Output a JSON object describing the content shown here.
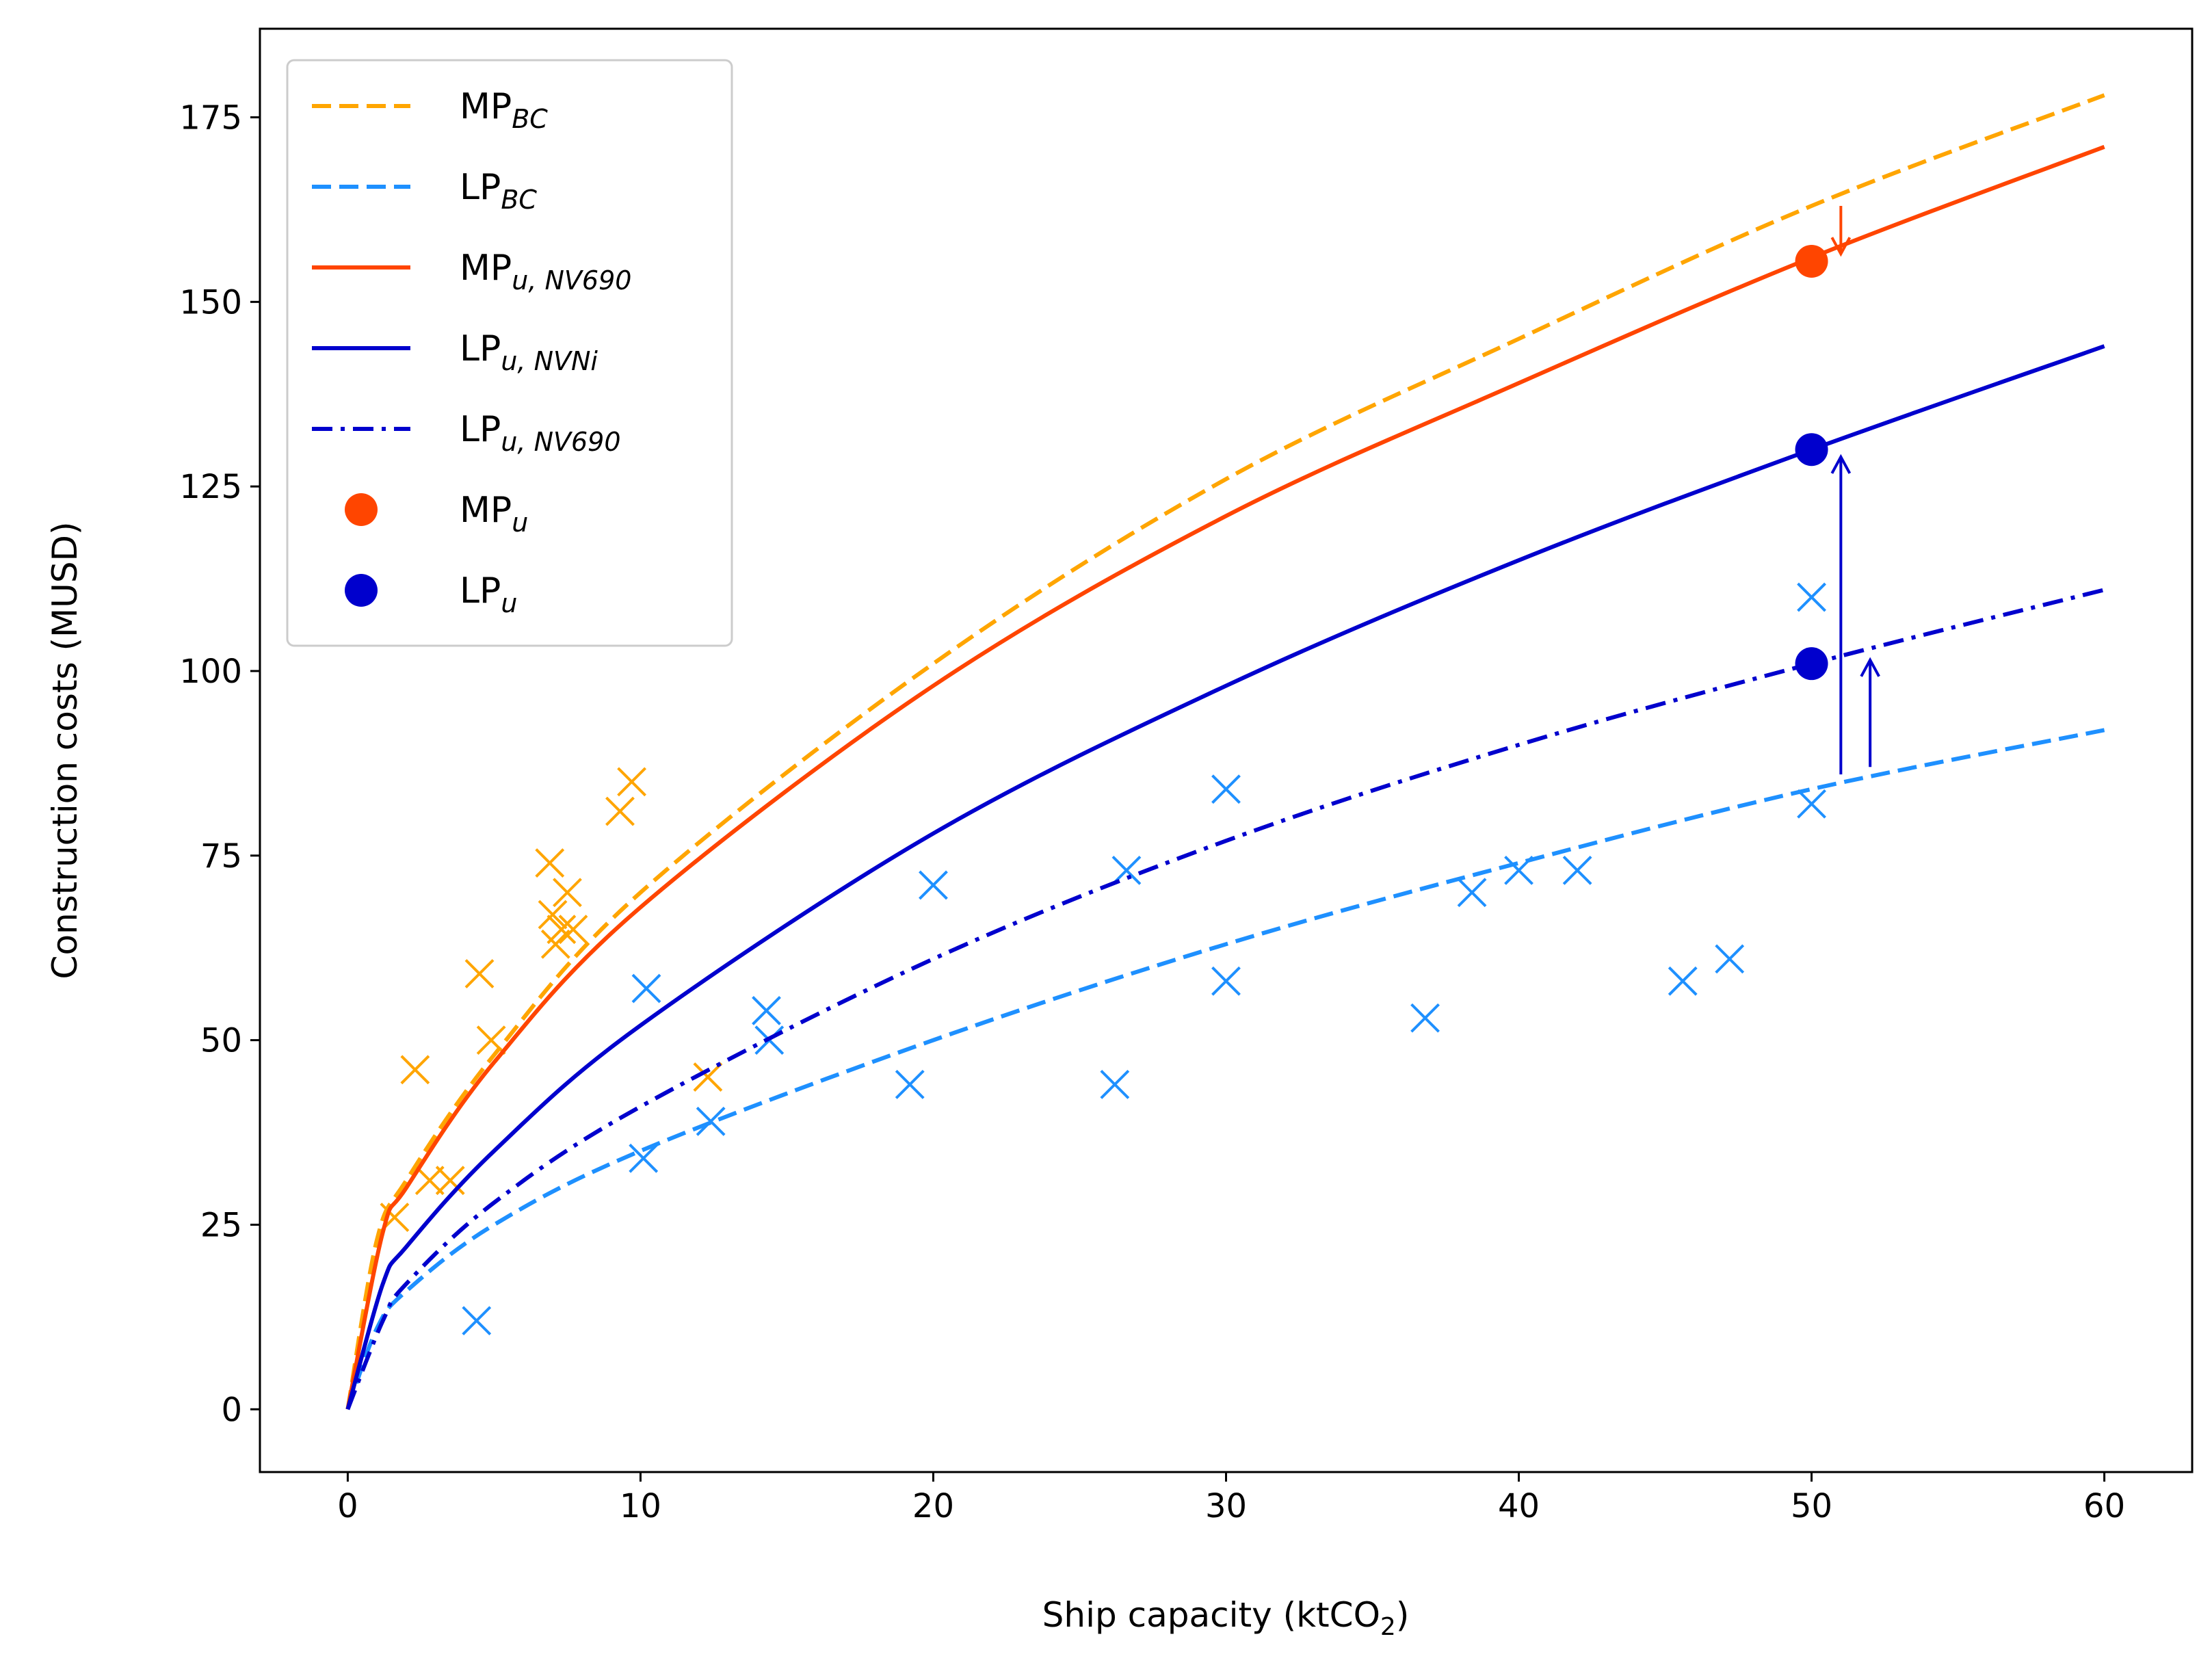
{
  "chart_data": {
    "type": "line",
    "xlabel": "Ship capacity (ktCO",
    "xlabel_sub": "2",
    "xlabel_end": ")",
    "ylabel": "Construction costs (MUSD)",
    "xlim": [
      -3,
      63
    ],
    "ylim": [
      -8.5,
      187
    ],
    "xticks": [
      0,
      10,
      20,
      30,
      40,
      50,
      60
    ],
    "yticks": [
      0,
      25,
      50,
      75,
      100,
      125,
      150,
      175
    ],
    "legend_position": "top-left",
    "colors": {
      "mp_bc": "#FFA500",
      "lp_bc": "#1E90FF",
      "mp_u": "#FF4500",
      "lp_u": "#0000CD"
    },
    "series": [
      {
        "key": "mp_bc",
        "name": "MP",
        "sub": "BC",
        "style": "dashed",
        "color": "#FFA500",
        "x": [
          0,
          1,
          2,
          5,
          10,
          20,
          30,
          40,
          50,
          60
        ],
        "y": [
          0,
          23,
          31,
          48,
          70,
          101,
          126,
          145,
          163,
          178
        ]
      },
      {
        "key": "lp_bc",
        "name": "LP",
        "sub": "BC",
        "style": "dashed",
        "color": "#1E90FF",
        "x": [
          0,
          1,
          2,
          5,
          10,
          20,
          30,
          40,
          50,
          60
        ],
        "y": [
          0,
          11,
          16,
          25,
          35,
          50,
          63,
          74,
          84,
          92
        ]
      },
      {
        "key": "mp_u_nv690",
        "name": "MP",
        "sub": "u, NV690",
        "style": "solid",
        "color": "#FF4500",
        "x": [
          0,
          1.2,
          2,
          5,
          10,
          20,
          30,
          40,
          50,
          60
        ],
        "y": [
          0,
          24,
          30,
          47,
          68,
          98,
          121,
          139,
          156,
          171
        ]
      },
      {
        "key": "lp_u_nvni",
        "name": "LP",
        "sub": "u, NVNi",
        "style": "solid",
        "color": "#0000CD",
        "x": [
          0,
          1.2,
          2,
          5,
          10,
          20,
          30,
          40,
          50,
          60
        ],
        "y": [
          0,
          17,
          22,
          35,
          52,
          78,
          98,
          115,
          130,
          144
        ]
      },
      {
        "key": "lp_u_nv690",
        "name": "LP",
        "sub": "u, NV690",
        "style": "dashdot",
        "color": "#0000CD",
        "x": [
          0,
          1.2,
          2,
          5,
          10,
          20,
          30,
          40,
          50,
          60
        ],
        "y": [
          0,
          12,
          17,
          28,
          41,
          61,
          77,
          90,
          101,
          111
        ]
      }
    ],
    "points": [
      {
        "key": "mp_u",
        "name": "MP",
        "sub": "u",
        "color": "#FF4500",
        "x": 50,
        "y": 155.5
      },
      {
        "key": "lp_u",
        "name": "LP",
        "sub": "u",
        "color": "#0000CD",
        "x": [
          50,
          50
        ],
        "y": [
          130,
          101
        ]
      }
    ],
    "scatter_mp": {
      "color": "#FFA500",
      "x": [
        1.6,
        2.3,
        2.8,
        3.5,
        4.5,
        4.9,
        6.9,
        7.0,
        7.1,
        7.3,
        7.5,
        7.7,
        9.3,
        9.7,
        12.3
      ],
      "y": [
        26,
        46,
        31,
        31,
        59,
        50,
        74,
        67,
        63,
        65,
        70,
        65,
        81,
        85,
        45
      ]
    },
    "scatter_lp": {
      "color": "#1E90FF",
      "x": [
        4.4,
        10.1,
        10.2,
        12.4,
        14.3,
        14.4,
        19.2,
        20.0,
        26.2,
        26.6,
        30.0,
        30.0,
        36.8,
        38.4,
        40.0,
        42.0,
        45.6,
        47.2,
        50.0,
        50.0
      ],
      "y": [
        12,
        34,
        57,
        39,
        54,
        50,
        44,
        71,
        44,
        73,
        84,
        58,
        53,
        70,
        73,
        73,
        58,
        61,
        110,
        82
      ]
    },
    "arrows": [
      {
        "color": "#FF4500",
        "x": 51,
        "y_from": 163,
        "y_to": 156.5
      },
      {
        "color": "#0000CD",
        "x": 51,
        "y_from": 86,
        "y_to": 129
      },
      {
        "color": "#0000CD",
        "x": 52,
        "y_from": 87,
        "y_to": 101.5
      }
    ]
  }
}
